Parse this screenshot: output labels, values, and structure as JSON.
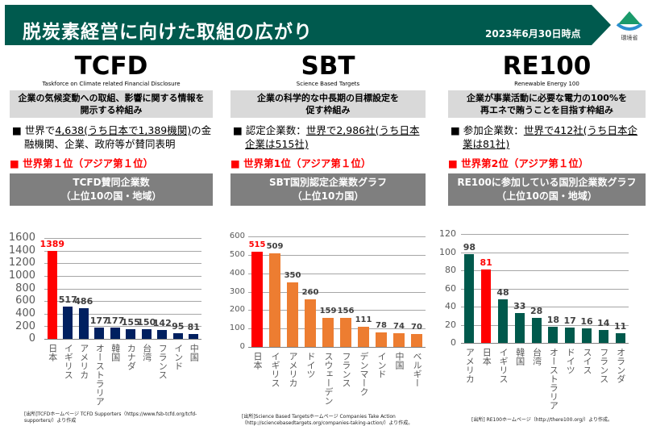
{
  "header": {
    "title": "脱炭素経営に向けた取組の広がり",
    "date": "2023年6月30日時点",
    "logo_text": "環境省",
    "color": "#005a4e"
  },
  "columns": [
    {
      "name": "TCFD",
      "subtitle": "Taskforce on Climate related Financial Disclosure",
      "desc_line1": "企業の気候変動への取組、影響に関する情報を",
      "desc_line2": "開示する枠組み",
      "bullet_marker": "■",
      "bullet_pre": "世界で",
      "bullet_underlined": "4,638(うち日本で1,389機関)",
      "bullet_post": "の金融機関、企業、政府等が賛同表明",
      "rank": "■ 世界第１位（アジア第１位）",
      "chart_title_line1": "TCFD賛同企業数",
      "chart_title_line2": "（上位10の国・地域）"
    },
    {
      "name": "SBT",
      "subtitle": "Science Based Targets",
      "desc_line1": "企業の科学的な中長期の目標設定を",
      "desc_line2": "促す枠組み",
      "bullet_marker": "■",
      "bullet_pre": "認定企業数：",
      "bullet_underlined": "世界で2,986社(うち日本企業は515社)",
      "bullet_post": "",
      "rank": "■ 世界第1位（アジア第１位）",
      "chart_title_line1": "SBT国別認定企業数グラフ",
      "chart_title_line2": "（上位10カ国）"
    },
    {
      "name": "RE100",
      "subtitle": "Renewable Energy 100",
      "desc_line1": "企業が事業活動に必要な電力の100%を",
      "desc_line2": "再エネで賄うことを目指す枠組み",
      "bullet_marker": "■",
      "bullet_pre": "参加企業数：",
      "bullet_underlined": "世界で412社(うち日本企業は81社)",
      "bullet_post": "",
      "rank": "■ 世界第2位（アジア第１位）",
      "chart_title_line1": "RE100に参加している国別企業数グラフ",
      "chart_title_line2": "（上位10の国・地域）"
    }
  ],
  "chart_data": [
    {
      "type": "bar",
      "categories": [
        "日本",
        "イギリス",
        "アメリカ",
        "オーストラリア",
        "韓国",
        "カナダ",
        "台湾",
        "フランス",
        "インド",
        "中国"
      ],
      "values": [
        1389,
        517,
        486,
        177,
        177,
        155,
        150,
        142,
        95,
        81
      ],
      "ylim": [
        0,
        1600
      ],
      "yticks": [
        0,
        200,
        400,
        600,
        800,
        1000,
        1200,
        1400,
        1600
      ],
      "grid": true,
      "bar_color": "#002060",
      "highlight_color": "#ff0000",
      "highlight_index": 0,
      "source": "[出所]TCFDホームページ TCFD Supporters（https://www.fsb-tcfd.org/tcfd-supporters/）より作成"
    },
    {
      "type": "bar",
      "categories": [
        "日本",
        "イギリス",
        "アメリカ",
        "ドイツ",
        "スウェーデン",
        "フランス",
        "デンマーク",
        "インド",
        "中国",
        "ベルギー"
      ],
      "values": [
        515,
        509,
        350,
        260,
        159,
        156,
        111,
        78,
        74,
        70
      ],
      "ylim": [
        0,
        600
      ],
      "yticks": [
        0,
        100,
        200,
        300,
        400,
        500,
        600
      ],
      "grid": true,
      "bar_color": "#ed7d31",
      "highlight_color": "#ff0000",
      "highlight_index": 0,
      "source": "[出所]Science Based Targetsホームページ Companies Take Action（http://sciencebasedtargets.org/companies-taking-action/）より作成。"
    },
    {
      "type": "bar",
      "categories": [
        "アメリカ",
        "日本",
        "イギリス",
        "韓国",
        "台湾",
        "オーストラリア",
        "ドイツ",
        "スイス",
        "フランス",
        "オランダ"
      ],
      "values": [
        98,
        81,
        48,
        33,
        28,
        18,
        17,
        16,
        14,
        11
      ],
      "ylim": [
        0,
        120
      ],
      "yticks": [
        0,
        20,
        40,
        60,
        80,
        100,
        120
      ],
      "grid": true,
      "bar_color": "#00594c",
      "highlight_color": "#ff0000",
      "highlight_index": 1,
      "source": "[出所] RE100ホームページ（http://there100.org/）より作成。"
    }
  ]
}
